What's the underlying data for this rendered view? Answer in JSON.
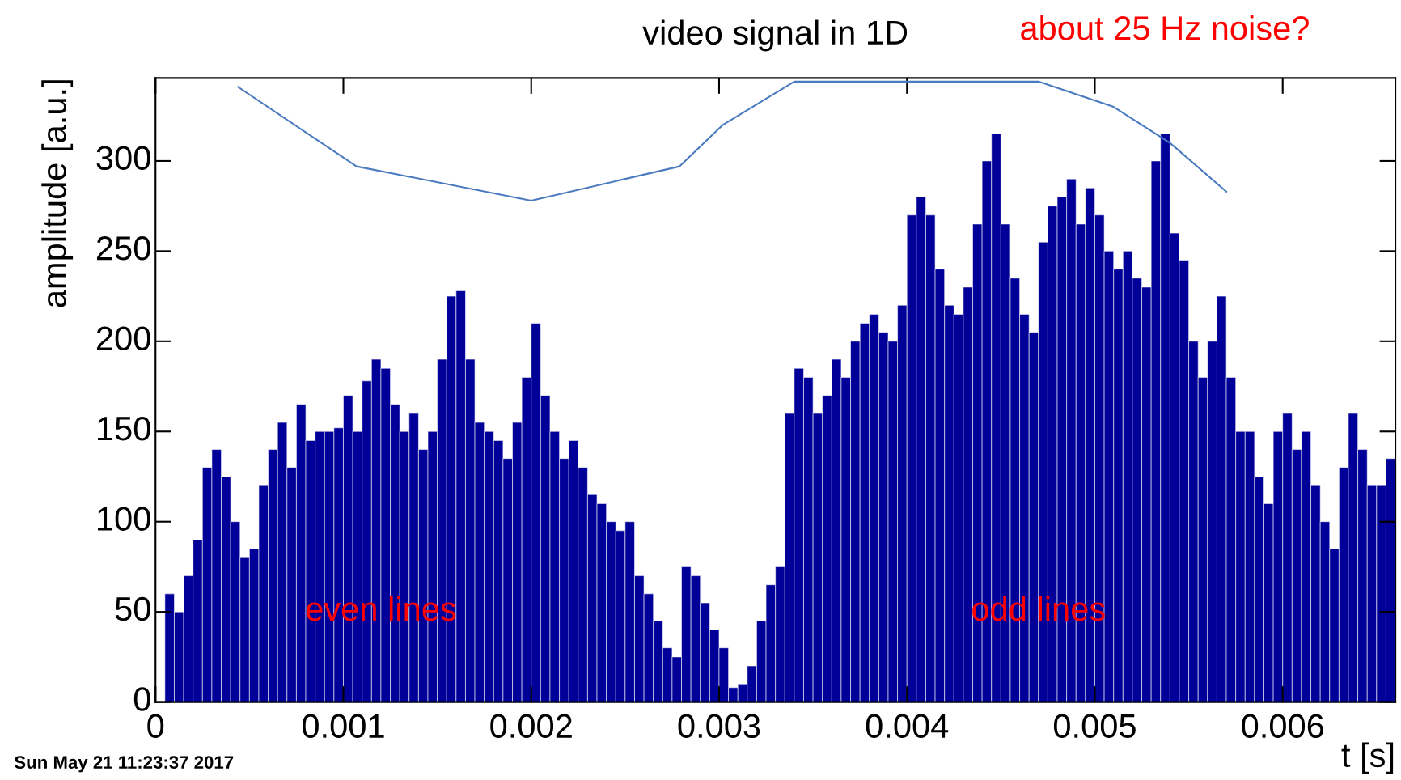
{
  "chart_data": {
    "type": "histogram",
    "title": "video signal in 1D",
    "xlabel": "t [s]",
    "ylabel": "amplitude [a.u.]",
    "bins": [
      0,
      5e-05,
      0.0001,
      0.00015,
      0.0002,
      0.00025,
      0.0003,
      0.00035,
      0.0004,
      0.00045,
      0.0005,
      0.00055,
      0.0006,
      0.00065,
      0.0007,
      0.00075,
      0.0008,
      0.00085,
      0.0009,
      0.00095,
      0.001,
      0.00105,
      0.0011,
      0.00115,
      0.0012,
      0.00125,
      0.0013,
      0.00135,
      0.0014,
      0.00145,
      0.0015,
      0.00155,
      0.0016,
      0.00165,
      0.0017,
      0.00175,
      0.0018,
      0.00185,
      0.0019,
      0.00195,
      0.002,
      0.00205,
      0.0021,
      0.00215,
      0.0022,
      0.00225,
      0.0023,
      0.00235,
      0.0024,
      0.00245,
      0.0025,
      0.00255,
      0.0026,
      0.00265,
      0.0027,
      0.00275,
      0.0028,
      0.00285,
      0.0029,
      0.00295,
      0.003,
      0.00305,
      0.0031,
      0.00315,
      0.0032,
      0.00325,
      0.0033,
      0.00335,
      0.0034,
      0.00345,
      0.0035,
      0.00355,
      0.0036,
      0.00365,
      0.0037,
      0.00375,
      0.0038,
      0.00385,
      0.0039,
      0.00395,
      0.004,
      0.00405,
      0.0041,
      0.00415,
      0.0042,
      0.00425,
      0.0043,
      0.00435,
      0.0044,
      0.00445,
      0.0045,
      0.00455,
      0.0046,
      0.00465,
      0.0047,
      0.00475,
      0.0048,
      0.00485,
      0.0049,
      0.00495,
      0.005,
      0.00505,
      0.0051,
      0.00515,
      0.0052,
      0.00525,
      0.0053,
      0.00535,
      0.0054,
      0.00545,
      0.0055,
      0.00555,
      0.0056,
      0.00565,
      0.0057,
      0.00575,
      0.0058,
      0.00585,
      0.0059,
      0.00595,
      0.006,
      0.00605,
      0.0061,
      0.00615,
      0.0062,
      0.00625,
      0.0063,
      0.00635,
      0.0064,
      0.00645,
      0.0065,
      0.00655,
      0.0066
    ],
    "values": [
      0,
      60,
      50,
      70,
      90,
      130,
      140,
      125,
      100,
      80,
      85,
      120,
      140,
      155,
      130,
      165,
      145,
      150,
      150,
      152,
      170,
      150,
      178,
      190,
      185,
      165,
      150,
      160,
      140,
      150,
      190,
      225,
      228,
      190,
      155,
      150,
      145,
      135,
      155,
      180,
      210,
      170,
      150,
      135,
      145,
      130,
      115,
      110,
      100,
      95,
      100,
      70,
      60,
      45,
      30,
      25,
      75,
      70,
      55,
      40,
      30,
      8,
      10,
      20,
      45,
      65,
      75,
      160,
      185,
      180,
      160,
      170,
      190,
      180,
      200,
      210,
      215,
      205,
      200,
      220,
      270,
      280,
      270,
      240,
      220,
      215,
      230,
      265,
      300,
      315,
      265,
      235,
      215,
      205,
      255,
      275,
      280,
      290,
      265,
      285,
      270,
      250,
      240,
      250,
      235,
      230,
      300,
      315,
      260,
      245,
      200,
      180,
      200,
      225,
      180,
      150,
      150,
      125,
      110,
      150,
      160,
      140,
      150,
      120,
      100,
      85,
      130,
      160,
      140,
      120,
      120,
      135
    ],
    "color": "#000099",
    "series": [
      {
        "type": "line",
        "color": "#4a7abf",
        "x": [
          0.00044,
          0.00107,
          0.002,
          0.00279,
          0.00302,
          0.0034,
          0.0047,
          0.0051,
          0.0054,
          0.0057
        ],
        "values": [
          341,
          297,
          278,
          297,
          320,
          344,
          344,
          330,
          310,
          283
        ]
      }
    ],
    "xlim": [
      0,
      0.0066
    ],
    "ylim": [
      0,
      346
    ],
    "xticks": [
      0,
      0.001,
      0.002,
      0.003,
      0.004,
      0.005,
      0.006
    ],
    "yticks": [
      0,
      50,
      100,
      150,
      200,
      250,
      300
    ],
    "grid": false,
    "legend": false,
    "annotations": [
      "about 25 Hz noise?",
      {
        "text": "even lines",
        "x": 0.0012,
        "y": 50
      },
      {
        "text": "odd lines",
        "x": 0.0047,
        "y": 50
      },
      "Sun May 21 11:23:37 2017"
    ]
  }
}
